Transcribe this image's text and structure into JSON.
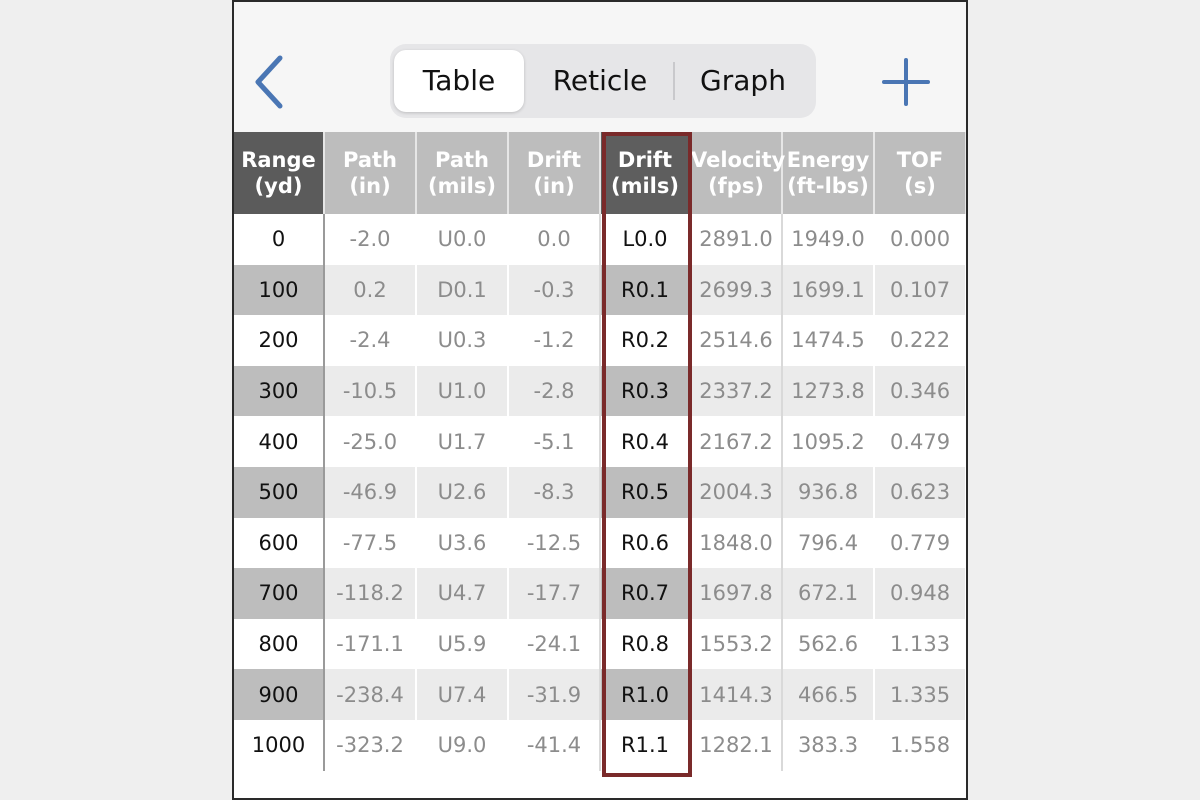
{
  "header": {
    "back_icon": "chevron-left-icon",
    "add_icon": "plus-icon",
    "accent_color": "#4a76b4",
    "tabs": [
      {
        "label": "Table",
        "active": true
      },
      {
        "label": "Reticle",
        "active": false
      },
      {
        "label": "Graph",
        "active": false
      }
    ]
  },
  "table": {
    "columns": [
      {
        "line1": "Range",
        "line2": "(yd)"
      },
      {
        "line1": "Path",
        "line2": "(in)"
      },
      {
        "line1": "Path",
        "line2": "(mils)"
      },
      {
        "line1": "Drift",
        "line2": "(in)"
      },
      {
        "line1": "Drift",
        "line2": "(mils)"
      },
      {
        "line1": "Velocity",
        "line2": "(fps)"
      },
      {
        "line1": "Energy",
        "line2": "(ft-lbs)"
      },
      {
        "line1": "TOF",
        "line2": "(s)"
      }
    ],
    "highlighted_column": "Drift (mils)",
    "highlight_color": "#7a2a2a",
    "rows": [
      [
        "0",
        "-2.0",
        "U0.0",
        "0.0",
        "L0.0",
        "2891.0",
        "1949.0",
        "0.000"
      ],
      [
        "100",
        "0.2",
        "D0.1",
        "-0.3",
        "R0.1",
        "2699.3",
        "1699.1",
        "0.107"
      ],
      [
        "200",
        "-2.4",
        "U0.3",
        "-1.2",
        "R0.2",
        "2514.6",
        "1474.5",
        "0.222"
      ],
      [
        "300",
        "-10.5",
        "U1.0",
        "-2.8",
        "R0.3",
        "2337.2",
        "1273.8",
        "0.346"
      ],
      [
        "400",
        "-25.0",
        "U1.7",
        "-5.1",
        "R0.4",
        "2167.2",
        "1095.2",
        "0.479"
      ],
      [
        "500",
        "-46.9",
        "U2.6",
        "-8.3",
        "R0.5",
        "2004.3",
        "936.8",
        "0.623"
      ],
      [
        "600",
        "-77.5",
        "U3.6",
        "-12.5",
        "R0.6",
        "1848.0",
        "796.4",
        "0.779"
      ],
      [
        "700",
        "-118.2",
        "U4.7",
        "-17.7",
        "R0.7",
        "1697.8",
        "672.1",
        "0.948"
      ],
      [
        "800",
        "-171.1",
        "U5.9",
        "-24.1",
        "R0.8",
        "1553.2",
        "562.6",
        "1.133"
      ],
      [
        "900",
        "-238.4",
        "U7.4",
        "-31.9",
        "R1.0",
        "1414.3",
        "466.5",
        "1.335"
      ],
      [
        "1000",
        "-323.2",
        "U9.0",
        "-41.4",
        "R1.1",
        "1282.1",
        "383.3",
        "1.558"
      ]
    ]
  }
}
